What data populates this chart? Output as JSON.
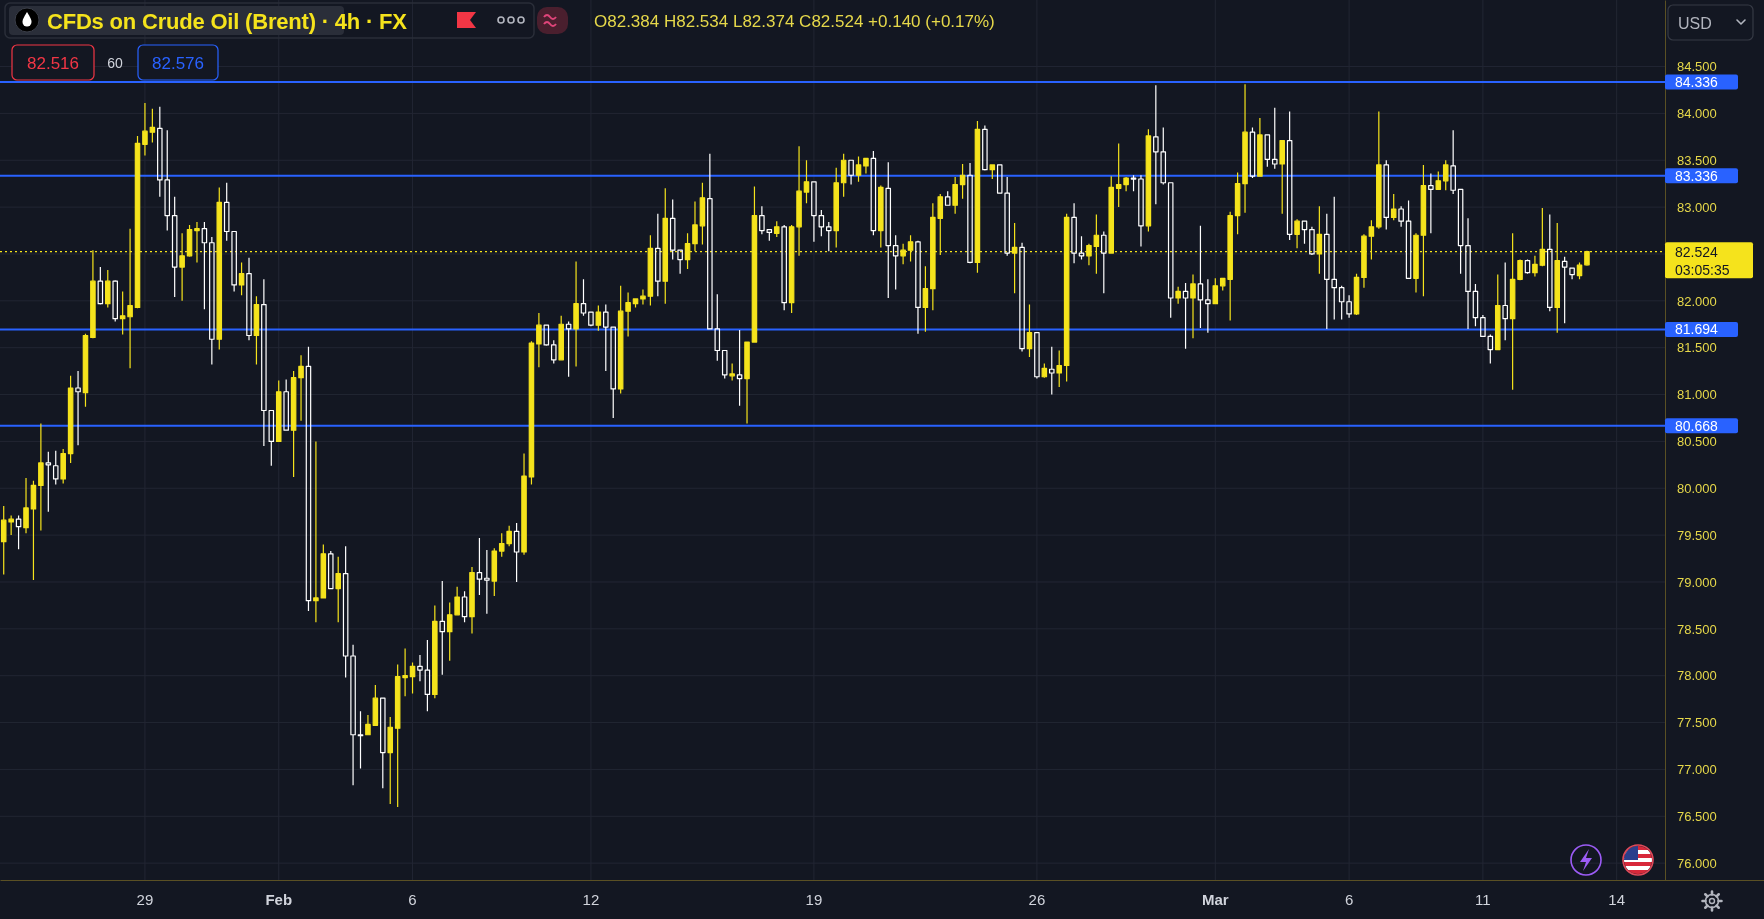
{
  "chart_data": {
    "type": "candlestick",
    "title": "CFDs on Crude Oil (Brent) · 4h · FX",
    "annotations": [
      "O82.384 H82.534 L82.374 C82.524 +0.140 (+0.17%)",
      "03:05:35",
      "82.516",
      "60",
      "82.576",
      "USD"
    ],
    "categories": [
      null,
      null,
      null,
      null,
      null,
      null,
      null,
      null,
      null,
      null,
      null,
      null,
      null,
      null,
      null,
      null,
      null,
      null,
      null,
      "29",
      null,
      null,
      null,
      null,
      null,
      null,
      null,
      null,
      null,
      null,
      null,
      null,
      null,
      null,
      null,
      null,
      null,
      "Feb",
      null,
      null,
      null,
      null,
      null,
      null,
      null,
      null,
      null,
      null,
      null,
      null,
      null,
      null,
      null,
      null,
      null,
      "6",
      null,
      null,
      null,
      null,
      null,
      null,
      null,
      null,
      null,
      null,
      null,
      null,
      null,
      null,
      null,
      null,
      null,
      null,
      null,
      null,
      null,
      null,
      null,
      "12",
      null,
      null,
      null,
      null,
      null,
      null,
      null,
      null,
      null,
      null,
      null,
      null,
      null,
      null,
      null,
      null,
      null,
      null,
      null,
      null,
      null,
      null,
      null,
      null,
      null,
      null,
      null,
      null,
      null,
      "19",
      null,
      null,
      null,
      null,
      null,
      null,
      null,
      null,
      null,
      null,
      null,
      null,
      null,
      null,
      null,
      null,
      null,
      null,
      null,
      null,
      null,
      null,
      null,
      null,
      null,
      null,
      null,
      null,
      null,
      "26",
      null,
      null,
      null,
      null,
      null,
      null,
      null,
      null,
      null,
      null,
      null,
      null,
      null,
      null,
      null,
      null,
      null,
      null,
      null,
      null,
      null,
      null,
      null,
      "Mar",
      null,
      null,
      null,
      null,
      null,
      null,
      null,
      null,
      null,
      null,
      null,
      null,
      null,
      null,
      null,
      null,
      null,
      "6",
      null,
      null,
      null,
      null,
      null,
      null,
      null,
      null,
      null,
      null,
      null,
      null,
      null,
      null,
      null,
      null,
      null,
      "11",
      null,
      null,
      null,
      null,
      null,
      null,
      null,
      null,
      null,
      null,
      null,
      null,
      null,
      null,
      null,
      null,
      null,
      "14",
      null,
      null,
      null,
      null,
      null,
      null
    ],
    "ohlc": [
      [
        79.43,
        79.81,
        79.08,
        79.66
      ],
      [
        79.64,
        79.71,
        79.5,
        79.67
      ],
      [
        79.67,
        79.71,
        79.35,
        79.59
      ],
      [
        79.58,
        80.11,
        79.52,
        79.79
      ],
      [
        79.78,
        80.08,
        79.02,
        80.03
      ],
      [
        80.03,
        80.69,
        79.55,
        80.27
      ],
      [
        80.27,
        80.39,
        79.75,
        80.25
      ],
      [
        80.24,
        80.4,
        80.04,
        80.1
      ],
      [
        80.1,
        80.42,
        80.05,
        80.37
      ],
      [
        80.37,
        81.2,
        80.27,
        81.07
      ],
      [
        81.07,
        81.25,
        80.46,
        81.03
      ],
      [
        81.02,
        81.65,
        80.87,
        81.63
      ],
      [
        81.61,
        82.54,
        81.6,
        82.21
      ],
      [
        82.21,
        82.36,
        81.96,
        81.97
      ],
      [
        81.97,
        82.33,
        81.93,
        82.21
      ],
      [
        82.21,
        82.22,
        81.78,
        81.81
      ],
      [
        81.81,
        82.1,
        81.64,
        81.84
      ],
      [
        81.83,
        82.77,
        81.28,
        81.95
      ],
      [
        81.93,
        83.76,
        81.92,
        83.68
      ],
      [
        83.67,
        84.11,
        83.55,
        83.81
      ],
      [
        83.8,
        84.05,
        83.69,
        83.85
      ],
      [
        83.84,
        84.07,
        83.11,
        83.29
      ],
      [
        83.29,
        83.82,
        82.75,
        82.91
      ],
      [
        82.91,
        83.11,
        82.04,
        82.36
      ],
      [
        82.36,
        82.72,
        82.0,
        82.48
      ],
      [
        82.48,
        82.81,
        82.47,
        82.76
      ],
      [
        82.75,
        82.84,
        82.41,
        82.77
      ],
      [
        82.77,
        82.84,
        81.91,
        82.62
      ],
      [
        82.62,
        82.68,
        81.32,
        81.59
      ],
      [
        81.59,
        83.21,
        81.48,
        83.05
      ],
      [
        83.05,
        83.26,
        82.64,
        82.74
      ],
      [
        82.74,
        82.74,
        82.1,
        82.17
      ],
      [
        82.17,
        82.41,
        82.06,
        82.29
      ],
      [
        82.29,
        82.46,
        81.58,
        81.63
      ],
      [
        81.63,
        82.05,
        81.32,
        81.96
      ],
      [
        81.96,
        82.23,
        80.45,
        80.83
      ],
      [
        80.83,
        80.83,
        80.24,
        80.5
      ],
      [
        80.5,
        81.15,
        80.5,
        81.03
      ],
      [
        81.03,
        81.16,
        80.62,
        80.62
      ],
      [
        80.62,
        81.25,
        80.12,
        81.18
      ],
      [
        81.18,
        81.42,
        80.72,
        81.3
      ],
      [
        81.3,
        81.51,
        78.69,
        78.8
      ],
      [
        78.8,
        80.5,
        78.57,
        78.83
      ],
      [
        78.83,
        79.4,
        78.83,
        79.3
      ],
      [
        79.3,
        79.33,
        78.93,
        78.93
      ],
      [
        78.93,
        79.27,
        78.57,
        79.09
      ],
      [
        79.09,
        79.38,
        77.98,
        78.21
      ],
      [
        78.21,
        78.33,
        76.83,
        77.37
      ],
      [
        77.37,
        77.62,
        77.01,
        77.36
      ],
      [
        77.37,
        77.58,
        77.37,
        77.48
      ],
      [
        77.47,
        77.9,
        77.47,
        77.76
      ],
      [
        77.76,
        77.76,
        76.8,
        77.18
      ],
      [
        77.18,
        77.56,
        76.63,
        77.45
      ],
      [
        77.44,
        78.12,
        76.6,
        77.99
      ],
      [
        77.98,
        78.29,
        77.78,
        78.0
      ],
      [
        77.99,
        78.14,
        77.81,
        78.1
      ],
      [
        78.1,
        78.22,
        77.94,
        78.06
      ],
      [
        78.06,
        78.38,
        77.62,
        77.8
      ],
      [
        77.8,
        78.75,
        77.76,
        78.58
      ],
      [
        78.58,
        79.01,
        78.01,
        78.47
      ],
      [
        78.47,
        78.78,
        78.16,
        78.65
      ],
      [
        78.65,
        78.95,
        78.65,
        78.84
      ],
      [
        78.84,
        78.9,
        78.57,
        78.63
      ],
      [
        78.63,
        79.16,
        78.45,
        79.1
      ],
      [
        79.1,
        79.47,
        78.86,
        79.03
      ],
      [
        79.04,
        79.34,
        78.66,
        79.02
      ],
      [
        79.01,
        79.36,
        78.85,
        79.33
      ],
      [
        79.33,
        79.52,
        79.27,
        79.41
      ],
      [
        79.41,
        79.6,
        79.38,
        79.54
      ],
      [
        79.54,
        79.63,
        79.0,
        79.32
      ],
      [
        79.32,
        80.37,
        79.29,
        80.13
      ],
      [
        80.12,
        81.57,
        80.04,
        81.55
      ],
      [
        81.54,
        81.87,
        81.29,
        81.74
      ],
      [
        81.74,
        81.74,
        81.52,
        81.53
      ],
      [
        81.53,
        81.58,
        81.33,
        81.37
      ],
      [
        81.37,
        81.84,
        81.37,
        81.75
      ],
      [
        81.75,
        81.78,
        81.19,
        81.7
      ],
      [
        81.7,
        82.42,
        81.3,
        81.97
      ],
      [
        81.97,
        82.23,
        81.84,
        81.87
      ],
      [
        81.88,
        81.88,
        81.73,
        81.74
      ],
      [
        81.74,
        81.95,
        81.68,
        81.88
      ],
      [
        81.88,
        81.96,
        81.25,
        81.72
      ],
      [
        81.72,
        81.72,
        80.75,
        81.06
      ],
      [
        81.06,
        82.16,
        81.01,
        81.89
      ],
      [
        81.89,
        82.09,
        81.62,
        81.98
      ],
      [
        81.97,
        82.02,
        81.93,
        82.02
      ],
      [
        82.02,
        82.12,
        81.96,
        82.05
      ],
      [
        82.05,
        82.7,
        81.95,
        82.56
      ],
      [
        82.56,
        82.93,
        82.05,
        82.21
      ],
      [
        82.21,
        83.2,
        81.97,
        82.88
      ],
      [
        82.88,
        83.08,
        82.44,
        82.54
      ],
      [
        82.54,
        82.54,
        82.29,
        82.44
      ],
      [
        82.44,
        82.72,
        82.34,
        82.61
      ],
      [
        82.61,
        83.06,
        82.53,
        82.81
      ],
      [
        82.8,
        83.26,
        82.6,
        83.1
      ],
      [
        83.09,
        83.57,
        81.7,
        81.7
      ],
      [
        81.7,
        82.07,
        81.36,
        81.47
      ],
      [
        81.47,
        81.47,
        81.17,
        81.21
      ],
      [
        81.2,
        81.33,
        81.15,
        81.22
      ],
      [
        81.21,
        81.69,
        80.88,
        81.17
      ],
      [
        81.17,
        81.56,
        80.69,
        81.56
      ],
      [
        81.56,
        83.22,
        81.56,
        82.91
      ],
      [
        82.91,
        83.01,
        82.71,
        82.75
      ],
      [
        82.76,
        82.76,
        82.64,
        82.73
      ],
      [
        82.72,
        82.85,
        82.68,
        82.79
      ],
      [
        82.79,
        82.81,
        81.9,
        81.98
      ],
      [
        81.98,
        82.81,
        81.87,
        82.79
      ],
      [
        82.79,
        83.65,
        82.48,
        83.17
      ],
      [
        83.16,
        83.5,
        83.04,
        83.27
      ],
      [
        83.27,
        83.27,
        82.63,
        82.91
      ],
      [
        82.91,
        82.97,
        82.69,
        82.79
      ],
      [
        82.79,
        82.84,
        82.53,
        82.75
      ],
      [
        82.75,
        83.42,
        82.57,
        83.26
      ],
      [
        83.26,
        83.57,
        83.11,
        83.5
      ],
      [
        83.5,
        83.5,
        83.24,
        83.34
      ],
      [
        83.34,
        83.54,
        83.27,
        83.45
      ],
      [
        83.44,
        83.52,
        83.36,
        83.52
      ],
      [
        83.52,
        83.6,
        82.7,
        82.75
      ],
      [
        82.75,
        83.23,
        82.57,
        83.21
      ],
      [
        83.2,
        83.48,
        82.03,
        82.59
      ],
      [
        82.59,
        82.7,
        82.12,
        82.48
      ],
      [
        82.48,
        82.61,
        82.39,
        82.54
      ],
      [
        82.54,
        82.7,
        82.42,
        82.63
      ],
      [
        82.63,
        82.64,
        81.65,
        81.93
      ],
      [
        81.93,
        82.37,
        81.67,
        82.13
      ],
      [
        82.13,
        83.04,
        81.9,
        82.89
      ],
      [
        82.88,
        83.14,
        82.49,
        83.11
      ],
      [
        83.11,
        83.17,
        83.02,
        83.02
      ],
      [
        83.02,
        83.32,
        82.93,
        83.24
      ],
      [
        83.24,
        83.46,
        83.09,
        83.34
      ],
      [
        83.34,
        83.47,
        82.4,
        82.41
      ],
      [
        82.41,
        83.92,
        82.3,
        83.83
      ],
      [
        83.83,
        83.87,
        83.39,
        83.4
      ],
      [
        83.4,
        83.45,
        83.3,
        83.45
      ],
      [
        83.45,
        83.45,
        83.15,
        83.15
      ],
      [
        83.15,
        83.32,
        82.48,
        82.51
      ],
      [
        82.51,
        82.83,
        82.08,
        82.57
      ],
      [
        82.57,
        82.62,
        81.46,
        81.49
      ],
      [
        81.49,
        81.96,
        81.4,
        81.66
      ],
      [
        81.66,
        81.66,
        81.17,
        81.19
      ],
      [
        81.19,
        81.33,
        81.18,
        81.28
      ],
      [
        81.27,
        81.51,
        81.0,
        81.23
      ],
      [
        81.23,
        81.47,
        81.08,
        81.31
      ],
      [
        81.31,
        82.93,
        81.14,
        82.89
      ],
      [
        82.89,
        83.04,
        82.4,
        82.51
      ],
      [
        82.51,
        82.69,
        82.44,
        82.48
      ],
      [
        82.48,
        82.61,
        82.38,
        82.59
      ],
      [
        82.58,
        82.92,
        82.29,
        82.7
      ],
      [
        82.7,
        82.74,
        82.08,
        82.51
      ],
      [
        82.51,
        83.33,
        82.51,
        83.21
      ],
      [
        83.2,
        83.68,
        83.0,
        83.24
      ],
      [
        83.24,
        83.32,
        83.17,
        83.31
      ],
      [
        83.31,
        83.34,
        83.17,
        83.3
      ],
      [
        83.3,
        83.34,
        82.58,
        82.8
      ],
      [
        82.8,
        83.83,
        82.74,
        83.76
      ],
      [
        83.75,
        84.3,
        83.03,
        83.59
      ],
      [
        83.59,
        83.85,
        83.24,
        83.26
      ],
      [
        83.26,
        83.26,
        81.82,
        82.03
      ],
      [
        82.03,
        82.15,
        81.97,
        82.1
      ],
      [
        82.1,
        82.19,
        81.49,
        82.03
      ],
      [
        82.03,
        82.28,
        81.6,
        82.18
      ],
      [
        82.18,
        82.8,
        81.71,
        82.01
      ],
      [
        82.01,
        82.23,
        81.66,
        81.97
      ],
      [
        81.97,
        82.24,
        81.97,
        82.16
      ],
      [
        82.16,
        82.24,
        82.11,
        82.24
      ],
      [
        82.23,
        82.95,
        81.79,
        82.91
      ],
      [
        82.91,
        83.37,
        82.71,
        83.25
      ],
      [
        83.25,
        84.31,
        82.94,
        83.8
      ],
      [
        83.8,
        83.85,
        83.31,
        83.33
      ],
      [
        83.33,
        83.95,
        83.33,
        83.77
      ],
      [
        83.77,
        83.77,
        83.43,
        83.51
      ],
      [
        83.51,
        84.06,
        83.41,
        83.46
      ],
      [
        83.46,
        83.71,
        82.93,
        83.71
      ],
      [
        83.71,
        84.02,
        82.65,
        82.71
      ],
      [
        82.71,
        82.87,
        82.56,
        82.85
      ],
      [
        82.85,
        82.85,
        82.61,
        82.76
      ],
      [
        82.76,
        82.79,
        82.49,
        82.5
      ],
      [
        82.5,
        83.01,
        82.29,
        82.71
      ],
      [
        82.71,
        82.93,
        81.7,
        82.23
      ],
      [
        82.23,
        83.11,
        81.8,
        82.14
      ],
      [
        82.14,
        82.16,
        81.8,
        81.99
      ],
      [
        81.99,
        82.06,
        81.82,
        81.86
      ],
      [
        81.86,
        82.29,
        81.85,
        82.25
      ],
      [
        82.25,
        82.71,
        82.14,
        82.69
      ],
      [
        82.69,
        82.86,
        82.44,
        82.79
      ],
      [
        82.79,
        84.02,
        82.77,
        83.45
      ],
      [
        83.45,
        83.5,
        82.76,
        82.89
      ],
      [
        82.89,
        83.14,
        82.86,
        82.98
      ],
      [
        82.98,
        83.01,
        82.79,
        82.85
      ],
      [
        82.85,
        83.07,
        82.24,
        82.24
      ],
      [
        82.24,
        82.72,
        82.09,
        82.7
      ],
      [
        82.7,
        83.45,
        82.05,
        83.23
      ],
      [
        83.23,
        83.36,
        82.72,
        83.19
      ],
      [
        83.19,
        83.38,
        83.19,
        83.28
      ],
      [
        83.28,
        83.5,
        83.18,
        83.45
      ],
      [
        83.44,
        83.82,
        83.14,
        83.18
      ],
      [
        83.19,
        83.19,
        82.29,
        82.59
      ],
      [
        82.59,
        82.88,
        81.7,
        82.1
      ],
      [
        82.1,
        82.18,
        81.73,
        81.82
      ],
      [
        81.82,
        81.85,
        81.62,
        81.62
      ],
      [
        81.62,
        81.64,
        81.33,
        81.48
      ],
      [
        81.48,
        82.28,
        81.48,
        81.95
      ],
      [
        81.95,
        82.41,
        81.58,
        81.81
      ],
      [
        81.81,
        82.72,
        81.05,
        82.23
      ],
      [
        82.23,
        82.44,
        82.22,
        82.43
      ],
      [
        82.43,
        82.44,
        82.29,
        82.3
      ],
      [
        82.3,
        82.48,
        82.26,
        82.39
      ],
      [
        82.38,
        82.99,
        82.37,
        82.55
      ],
      [
        82.55,
        82.92,
        81.89,
        81.93
      ],
      [
        81.93,
        82.83,
        81.66,
        82.43
      ],
      [
        82.42,
        82.47,
        81.76,
        82.36
      ],
      [
        82.35,
        82.35,
        82.23,
        82.28
      ],
      [
        82.27,
        82.41,
        82.23,
        82.38
      ],
      [
        82.384,
        82.534,
        82.374,
        82.524
      ],
      null,
      null,
      null,
      null,
      null,
      null,
      null,
      null,
      null,
      null
    ],
    "colors": [
      "#f5e31c",
      "#f5e31c",
      "#ffffff",
      "#f5e31c",
      "#f5e31c",
      "#f5e31c",
      "#ffffff",
      "#ffffff",
      "#f5e31c",
      "#f5e31c",
      "#ffffff",
      "#f5e31c",
      "#f5e31c",
      "#ffffff",
      "#f5e31c",
      "#ffffff",
      "#f5e31c",
      "#f5e31c",
      "#f5e31c",
      "#f5e31c",
      "#f5e31c",
      "#ffffff",
      "#ffffff",
      "#ffffff",
      "#f5e31c",
      "#f5e31c",
      "#f5e31c",
      "#ffffff",
      "#ffffff",
      "#f5e31c",
      "#ffffff",
      "#ffffff",
      "#f5e31c",
      "#ffffff",
      "#f5e31c",
      "#ffffff",
      "#ffffff",
      "#f5e31c",
      "#ffffff",
      "#f5e31c",
      "#f5e31c",
      "#ffffff",
      "#f5e31c",
      "#f5e31c",
      "#ffffff",
      "#f5e31c",
      "#ffffff",
      "#ffffff",
      "#ffffff",
      "#f5e31c",
      "#f5e31c",
      "#ffffff",
      "#f5e31c",
      "#f5e31c",
      "#f5e31c",
      "#f5e31c",
      "#ffffff",
      "#ffffff",
      "#f5e31c",
      "#ffffff",
      "#f5e31c",
      "#f5e31c",
      "#ffffff",
      "#f5e31c",
      "#ffffff",
      "#ffffff",
      "#f5e31c",
      "#f5e31c",
      "#f5e31c",
      "#ffffff",
      "#f5e31c",
      "#f5e31c",
      "#f5e31c",
      "#ffffff",
      "#ffffff",
      "#f5e31c",
      "#ffffff",
      "#f5e31c",
      "#ffffff",
      "#ffffff",
      "#f5e31c",
      "#ffffff",
      "#ffffff",
      "#f5e31c",
      "#f5e31c",
      "#f5e31c",
      "#f5e31c",
      "#f5e31c",
      "#ffffff",
      "#f5e31c",
      "#ffffff",
      "#ffffff",
      "#f5e31c",
      "#f5e31c",
      "#f5e31c",
      "#ffffff",
      "#ffffff",
      "#ffffff",
      "#f5e31c",
      "#ffffff",
      "#f5e31c",
      "#f5e31c",
      "#ffffff",
      "#ffffff",
      "#f5e31c",
      "#ffffff",
      "#f5e31c",
      "#f5e31c",
      "#f5e31c",
      "#ffffff",
      "#ffffff",
      "#ffffff",
      "#f5e31c",
      "#f5e31c",
      "#ffffff",
      "#f5e31c",
      "#f5e31c",
      "#ffffff",
      "#f5e31c",
      "#ffffff",
      "#ffffff",
      "#f5e31c",
      "#f5e31c",
      "#ffffff",
      "#f5e31c",
      "#f5e31c",
      "#f5e31c",
      "#ffffff",
      "#f5e31c",
      "#f5e31c",
      "#ffffff",
      "#f5e31c",
      "#ffffff",
      "#f5e31c",
      "#ffffff",
      "#ffffff",
      "#f5e31c",
      "#ffffff",
      "#f5e31c",
      "#ffffff",
      "#f5e31c",
      "#ffffff",
      "#f5e31c",
      "#f5e31c",
      "#ffffff",
      "#ffffff",
      "#f5e31c",
      "#f5e31c",
      "#ffffff",
      "#f5e31c",
      "#f5e31c",
      "#f5e31c",
      "#ffffff",
      "#ffffff",
      "#f5e31c",
      "#ffffff",
      "#ffffff",
      "#ffffff",
      "#f5e31c",
      "#ffffff",
      "#f5e31c",
      "#ffffff",
      "#ffffff",
      "#f5e31c",
      "#f5e31c",
      "#f5e31c",
      "#f5e31c",
      "#f5e31c",
      "#ffffff",
      "#f5e31c",
      "#ffffff",
      "#ffffff",
      "#f5e31c",
      "#ffffff",
      "#f5e31c",
      "#ffffff",
      "#ffffff",
      "#f5e31c",
      "#ffffff",
      "#ffffff",
      "#ffffff",
      "#ffffff",
      "#f5e31c",
      "#f5e31c",
      "#f5e31c",
      "#f5e31c",
      "#ffffff",
      "#f5e31c",
      "#ffffff",
      "#ffffff",
      "#f5e31c",
      "#f5e31c",
      "#ffffff",
      "#f5e31c",
      "#f5e31c",
      "#ffffff",
      "#ffffff",
      "#ffffff",
      "#ffffff",
      "#ffffff",
      "#ffffff",
      "#f5e31c",
      "#ffffff",
      "#f5e31c",
      "#f5e31c",
      "#ffffff",
      "#f5e31c",
      "#f5e31c",
      "#ffffff",
      "#f5e31c",
      "#ffffff",
      "#ffffff",
      "#f5e31c",
      "#f5e31c",
      null,
      null,
      null,
      null,
      null,
      null,
      null,
      null,
      null,
      null
    ],
    "ylim": [
      75.82,
      85.21
    ],
    "yticks": [
      {
        "value": 76,
        "label": "76.000"
      },
      {
        "value": 76.5,
        "label": "76.500"
      },
      {
        "value": 77,
        "label": "77.000"
      },
      {
        "value": 77.5,
        "label": "77.500"
      },
      {
        "value": 78,
        "label": "78.000"
      },
      {
        "value": 78.5,
        "label": "78.500"
      },
      {
        "value": 79,
        "label": "79.000"
      },
      {
        "value": 79.5,
        "label": "79.500"
      },
      {
        "value": 80,
        "label": "80.000"
      },
      {
        "value": 80.5,
        "label": "80.500"
      },
      {
        "value": 81,
        "label": "81.000"
      },
      {
        "value": 81.5,
        "label": "81.500"
      },
      {
        "value": 82,
        "label": "82.000"
      },
      {
        "value": 82.5,
        "label": null
      },
      {
        "value": 83,
        "label": "83.000"
      },
      {
        "value": 83.5,
        "label": "83.500"
      },
      {
        "value": 84,
        "label": "84.000"
      },
      {
        "value": 84.5,
        "label": "84.500"
      }
    ],
    "ref_lines": [
      {
        "axis": "y",
        "value": 84.336,
        "label": "84.336",
        "color": "#2962ff",
        "line_style": "solid"
      },
      {
        "axis": "y",
        "value": 83.336,
        "label": "83.336",
        "color": "#2962ff",
        "line_style": "solid"
      },
      {
        "axis": "y",
        "value": 81.694,
        "label": "81.694",
        "color": "#2962ff",
        "line_style": "solid"
      },
      {
        "axis": "y",
        "value": 80.668,
        "label": "80.668",
        "color": "#2962ff",
        "line_style": "solid"
      },
      {
        "axis": "y",
        "value": 82.524,
        "label": "82.524",
        "color": "#f5e31c",
        "line_style": "dotted"
      }
    ],
    "grid": true
  }
}
